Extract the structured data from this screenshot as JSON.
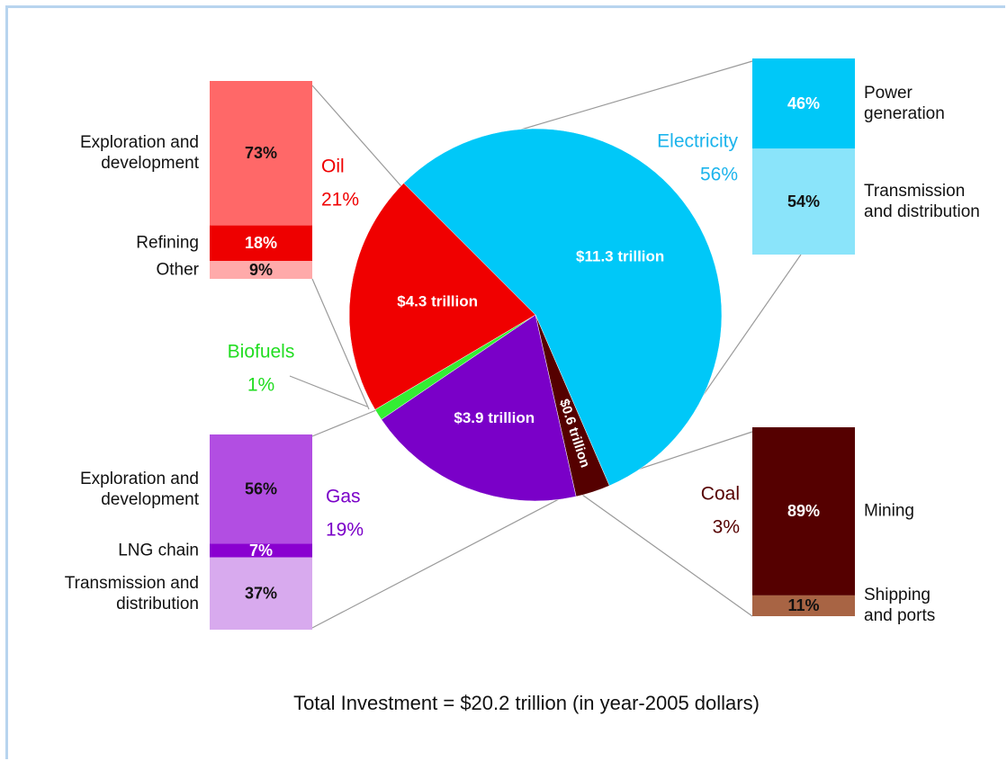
{
  "chart_data": {
    "type": "pie",
    "footnote": "Total Investment = $20.2 trillion (in year-2005 dollars)",
    "slices": [
      {
        "name": "Electricity",
        "value": 56,
        "value_label": "56%",
        "amount_label": "$11.3 trillion",
        "color": "#00c8f8",
        "label_color": "#1cb4ec",
        "breakdown": {
          "categories": [
            "Power generation",
            "Transmission and distribution"
          ],
          "values": [
            46,
            54
          ],
          "value_labels": [
            "46%",
            "54%"
          ],
          "colors": [
            "#00c8f8",
            "#8ae4fa"
          ],
          "text_colors": [
            "#ffffff",
            "#111111"
          ]
        }
      },
      {
        "name": "Coal",
        "value": 3,
        "value_label": "3%",
        "amount_label": "$0.6 trillion",
        "color": "#550000",
        "label_color": "#550000",
        "breakdown": {
          "categories": [
            "Mining",
            "Shipping and ports"
          ],
          "values": [
            89,
            11
          ],
          "value_labels": [
            "89%",
            "11%"
          ],
          "colors": [
            "#550000",
            "#a86444"
          ],
          "text_colors": [
            "#ffffff",
            "#111111"
          ]
        }
      },
      {
        "name": "Gas",
        "value": 19,
        "value_label": "19%",
        "amount_label": "$3.9 trillion",
        "color": "#7a00c8",
        "label_color": "#7a00c8",
        "breakdown": {
          "categories": [
            "Exploration and development",
            "LNG chain",
            "Transmission and distribution"
          ],
          "values": [
            56,
            7,
            37
          ],
          "value_labels": [
            "56%",
            "7%",
            "37%"
          ],
          "colors": [
            "#b24ee2",
            "#8a00d0",
            "#d8aaee"
          ],
          "text_colors": [
            "#111111",
            "#ffffff",
            "#111111"
          ]
        }
      },
      {
        "name": "Biofuels",
        "value": 1,
        "value_label": "1%",
        "color": "#33ee33",
        "label_color": "#22dd22"
      },
      {
        "name": "Oil",
        "value": 21,
        "value_label": "21%",
        "amount_label": "$4.3 trillion",
        "color": "#f00000",
        "label_color": "#f00000",
        "breakdown": {
          "categories": [
            "Exploration and development",
            "Refining",
            "Other"
          ],
          "values": [
            73,
            18,
            9
          ],
          "value_labels": [
            "73%",
            "18%",
            "9%"
          ],
          "colors": [
            "#ff6868",
            "#ee0000",
            "#ffaaaa"
          ],
          "text_colors": [
            "#111111",
            "#ffffff",
            "#111111"
          ]
        }
      }
    ]
  }
}
